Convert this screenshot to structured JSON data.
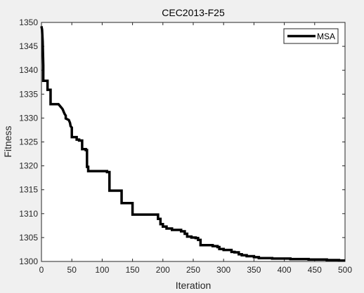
{
  "chart_data": {
    "type": "line",
    "title": "CEC2013-F25",
    "xlabel": "Iteration",
    "ylabel": "Fitness",
    "xlim": [
      0,
      500
    ],
    "ylim": [
      1300,
      1350
    ],
    "xticks": [
      0,
      50,
      100,
      150,
      200,
      250,
      300,
      350,
      400,
      450,
      500
    ],
    "yticks": [
      1300,
      1305,
      1310,
      1315,
      1320,
      1325,
      1330,
      1335,
      1340,
      1345,
      1350
    ],
    "grid": false,
    "legend_position": "top-right",
    "series": [
      {
        "name": "MSA",
        "color": "#000000",
        "x": [
          0,
          1,
          2,
          3,
          3,
          10,
          10,
          15,
          15,
          18,
          18,
          28,
          30,
          32,
          34,
          35,
          36,
          38,
          40,
          40,
          45,
          47,
          48,
          50,
          50,
          54,
          54,
          58,
          58,
          62,
          62,
          67,
          67,
          73,
          73,
          75,
          75,
          77,
          77,
          108,
          108,
          112,
          112,
          132,
          132,
          150,
          150,
          192,
          192,
          196,
          196,
          200,
          200,
          206,
          206,
          215,
          215,
          230,
          230,
          236,
          236,
          240,
          240,
          247,
          247,
          254,
          254,
          258,
          258,
          262,
          262,
          282,
          282,
          290,
          290,
          293,
          293,
          300,
          300,
          313,
          313,
          318,
          318,
          325,
          325,
          330,
          330,
          338,
          338,
          350,
          350,
          358,
          358,
          380,
          380,
          410,
          410,
          440,
          440,
          470,
          470,
          490,
          490,
          500
        ],
        "values": [
          1349.2,
          1348.5,
          1346.0,
          1341.0,
          1337.8,
          1337.8,
          1335.9,
          1335.9,
          1332.9,
          1332.9,
          1332.9,
          1332.9,
          1332.6,
          1332.3,
          1332.0,
          1331.8,
          1331.5,
          1330.9,
          1330.5,
          1329.9,
          1329.6,
          1329.0,
          1328.3,
          1328.0,
          1326.0,
          1326.0,
          1326.0,
          1326.0,
          1325.5,
          1325.5,
          1325.3,
          1325.3,
          1323.5,
          1323.5,
          1323.3,
          1323.3,
          1319.8,
          1319.8,
          1318.9,
          1318.9,
          1318.7,
          1318.7,
          1314.8,
          1314.8,
          1312.2,
          1312.2,
          1309.8,
          1309.8,
          1308.9,
          1308.9,
          1307.8,
          1307.8,
          1307.3,
          1307.3,
          1306.9,
          1306.9,
          1306.6,
          1306.6,
          1306.3,
          1306.3,
          1305.8,
          1305.8,
          1305.2,
          1305.2,
          1305.0,
          1305.0,
          1304.9,
          1304.9,
          1304.5,
          1304.5,
          1303.4,
          1303.4,
          1303.2,
          1303.2,
          1303.0,
          1303.0,
          1302.6,
          1302.6,
          1302.4,
          1302.4,
          1302.0,
          1302.0,
          1301.9,
          1301.9,
          1301.5,
          1301.5,
          1301.3,
          1301.3,
          1301.1,
          1301.1,
          1300.9,
          1300.9,
          1300.7,
          1300.7,
          1300.6,
          1300.6,
          1300.5,
          1300.5,
          1300.4,
          1300.4,
          1300.3,
          1300.3,
          1300.2,
          1300.2
        ]
      }
    ]
  }
}
